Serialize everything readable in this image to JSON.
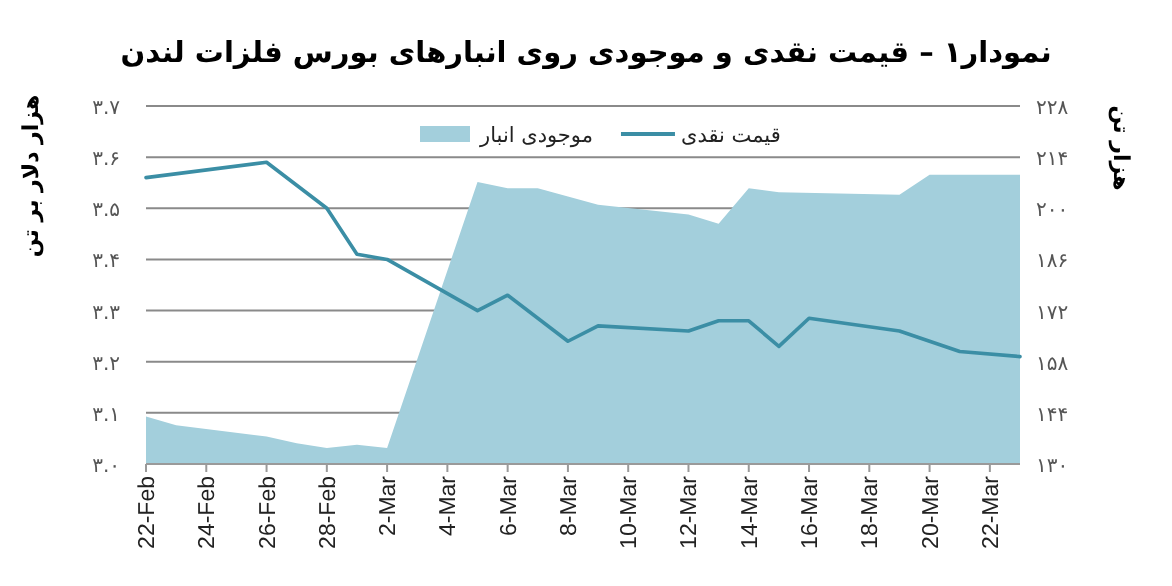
{
  "chart_data": {
    "type": "line",
    "title": "نمودار۱ – قیمت نقدی و موجودی روی انبارهای بورس فلزات لندن",
    "ylabel": "هزار دلار بر تن",
    "y2label": "هزار تن",
    "xlim": [
      "--02-22",
      "--03-23"
    ],
    "xticks": [
      {
        "value": "--02-22",
        "label": "22-Feb"
      },
      {
        "value": "--02-24",
        "label": "24-Feb"
      },
      {
        "value": "--02-26",
        "label": "26-Feb"
      },
      {
        "value": "--02-28",
        "label": "28-Feb"
      },
      {
        "value": "--03-02",
        "label": "2-Mar"
      },
      {
        "value": "--03-04",
        "label": "4-Mar"
      },
      {
        "value": "--03-06",
        "label": "6-Mar"
      },
      {
        "value": "--03-08",
        "label": "8-Mar"
      },
      {
        "value": "--03-10",
        "label": "10-Mar"
      },
      {
        "value": "--03-12",
        "label": "12-Mar"
      },
      {
        "value": "--03-14",
        "label": "14-Mar"
      },
      {
        "value": "--03-16",
        "label": "16-Mar"
      },
      {
        "value": "--03-18",
        "label": "18-Mar"
      },
      {
        "value": "--03-20",
        "label": "20-Mar"
      },
      {
        "value": "--03-22",
        "label": "22-Mar"
      }
    ],
    "ylim": [
      3.0,
      3.7
    ],
    "yticks": [
      {
        "value": 3.0,
        "label": "۳.۰"
      },
      {
        "value": 3.1,
        "label": "۳.۱"
      },
      {
        "value": 3.2,
        "label": "۳.۲"
      },
      {
        "value": 3.3,
        "label": "۳.۳"
      },
      {
        "value": 3.4,
        "label": "۳.۴"
      },
      {
        "value": 3.5,
        "label": "۳.۵"
      },
      {
        "value": 3.6,
        "label": "۳.۶"
      },
      {
        "value": 3.7,
        "label": "۳.۷"
      }
    ],
    "y2lim": [
      130,
      228
    ],
    "y2ticks": [
      {
        "value": 130,
        "label": "۱۳۰"
      },
      {
        "value": 144,
        "label": "۱۴۴"
      },
      {
        "value": 158,
        "label": "۱۵۸"
      },
      {
        "value": 172,
        "label": "۱۷۲"
      },
      {
        "value": 186,
        "label": "۱۸۶"
      },
      {
        "value": 200,
        "label": "۲۰۰"
      },
      {
        "value": 214,
        "label": "۲۱۴"
      },
      {
        "value": 228,
        "label": "۲۲۸"
      }
    ],
    "grid": "y",
    "legend": "top",
    "marker": "none",
    "line_style": "solid",
    "series": [
      {
        "name": "موجودی انبار",
        "type": "area",
        "axis": "y2",
        "color": "#a3cfdc",
        "x": [
          "--02-22",
          "--02-23",
          "--02-26",
          "--02-27",
          "--02-28",
          "--03-01",
          "--03-02",
          "--03-05",
          "--03-06",
          "--03-07",
          "--03-08",
          "--03-09",
          "--03-12",
          "--03-13",
          "--03-14",
          "--03-15",
          "--03-19",
          "--03-20",
          "--03-23"
        ],
        "values": [
          143,
          140.6,
          137.5,
          135.7,
          134.4,
          135.3,
          134.4,
          207.2,
          205.5,
          205.5,
          203.2,
          201,
          198.3,
          195.8,
          205.5,
          204.4,
          203.7,
          209.2,
          209.2
        ]
      },
      {
        "name": "قیمت نقدی",
        "type": "line",
        "color": "#3b8ea5",
        "x": [
          "--02-22",
          "--02-26",
          "--02-28",
          "--03-01",
          "--03-02",
          "--03-05",
          "--03-06",
          "--03-08",
          "--03-09",
          "--03-12",
          "--03-13",
          "--03-14",
          "--03-15",
          "--03-16",
          "--03-19",
          "--03-20",
          "--03-21",
          "--03-23"
        ],
        "values": [
          3.56,
          3.59,
          3.5,
          3.41,
          3.4,
          3.3,
          3.33,
          3.24,
          3.27,
          3.26,
          3.28,
          3.28,
          3.23,
          3.285,
          3.26,
          3.24,
          3.22,
          3.21
        ]
      }
    ]
  }
}
